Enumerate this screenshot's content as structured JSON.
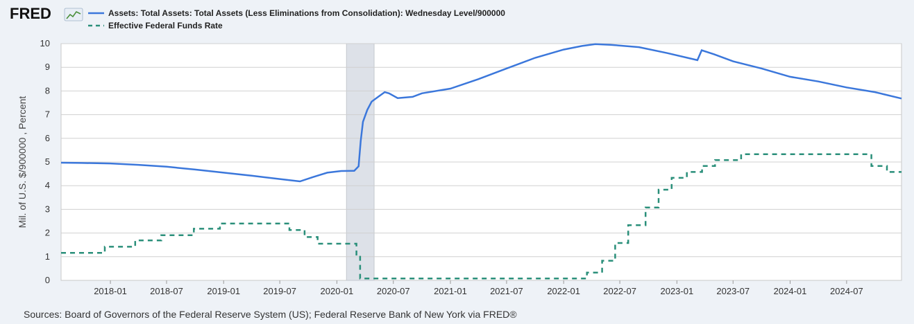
{
  "header": {
    "logo_text": "FRED",
    "logo_icon": "line-chart-icon"
  },
  "colors": {
    "background": "#eef2f7",
    "plot_background": "#ffffff",
    "grid": "#d0d0d0",
    "recession": "#dde1e8",
    "assets_series": "#3b77db",
    "fedfunds_series": "#2a8f7a"
  },
  "source_text": "Sources: Board of Governors of the Federal Reserve System (US); Federal Reserve Bank of New York via FRED®",
  "chart_data": {
    "type": "line",
    "ylabel": "Mil. of U.S. $/900000 , Percent",
    "xlabel": "",
    "ylim": [
      0,
      10
    ],
    "yticks": [
      0,
      1,
      2,
      3,
      4,
      5,
      6,
      7,
      8,
      9,
      10
    ],
    "xlim": [
      "2017-07-26",
      "2024-12-25"
    ],
    "xticks": [
      "2018-01",
      "2018-07",
      "2019-01",
      "2019-07",
      "2020-01",
      "2020-07",
      "2021-01",
      "2021-07",
      "2022-01",
      "2022-07",
      "2023-01",
      "2023-07",
      "2024-01",
      "2024-07"
    ],
    "grid": true,
    "legend_position": "top-left",
    "recession": {
      "start": "2020-02-01",
      "end": "2020-04-30"
    },
    "series": [
      {
        "name": "Assets: Total Assets: Total Assets (Less Eliminations from Consolidation): Wednesday Level/900000",
        "style": "solid",
        "x": [
          "2017-07-26",
          "2017-10-01",
          "2018-01-01",
          "2018-04-01",
          "2018-07-01",
          "2018-10-01",
          "2019-01-01",
          "2019-04-01",
          "2019-07-01",
          "2019-09-04",
          "2019-10-15",
          "2019-12-01",
          "2020-01-15",
          "2020-02-26",
          "2020-03-11",
          "2020-03-18",
          "2020-03-25",
          "2020-04-08",
          "2020-04-22",
          "2020-05-13",
          "2020-06-03",
          "2020-06-17",
          "2020-07-15",
          "2020-09-01",
          "2020-10-01",
          "2021-01-01",
          "2021-04-01",
          "2021-07-01",
          "2021-10-01",
          "2022-01-01",
          "2022-03-01",
          "2022-04-13",
          "2022-06-01",
          "2022-09-01",
          "2022-12-01",
          "2023-03-08",
          "2023-03-22",
          "2023-05-01",
          "2023-07-01",
          "2023-10-01",
          "2024-01-01",
          "2024-04-01",
          "2024-07-01",
          "2024-10-01",
          "2024-12-25"
        ],
        "values": [
          4.97,
          4.96,
          4.94,
          4.88,
          4.8,
          4.68,
          4.55,
          4.42,
          4.28,
          4.18,
          4.36,
          4.55,
          4.62,
          4.63,
          4.82,
          5.9,
          6.7,
          7.2,
          7.55,
          7.75,
          7.95,
          7.9,
          7.7,
          7.75,
          7.9,
          8.1,
          8.5,
          8.95,
          9.4,
          9.75,
          9.9,
          9.98,
          9.95,
          9.85,
          9.6,
          9.3,
          9.72,
          9.55,
          9.25,
          8.95,
          8.6,
          8.4,
          8.15,
          7.95,
          7.68
        ]
      },
      {
        "name": "Effective Federal Funds Rate",
        "style": "dashed",
        "step": true,
        "x": [
          "2017-07-26",
          "2017-12-14",
          "2018-03-22",
          "2018-06-14",
          "2018-09-27",
          "2018-12-20",
          "2019-08-01",
          "2019-09-19",
          "2019-10-31",
          "2020-03-04",
          "2020-03-16",
          "2022-03-17",
          "2022-05-05",
          "2022-06-16",
          "2022-07-28",
          "2022-09-22",
          "2022-11-03",
          "2022-12-15",
          "2023-02-02",
          "2023-03-23",
          "2023-05-04",
          "2023-07-27",
          "2024-09-19",
          "2024-11-08",
          "2024-12-25"
        ],
        "values": [
          1.16,
          1.42,
          1.69,
          1.91,
          2.18,
          2.4,
          2.13,
          1.83,
          1.55,
          1.09,
          0.08,
          0.33,
          0.83,
          1.58,
          2.33,
          3.08,
          3.83,
          4.33,
          4.58,
          4.83,
          5.08,
          5.33,
          4.83,
          4.58,
          4.58
        ]
      }
    ]
  }
}
